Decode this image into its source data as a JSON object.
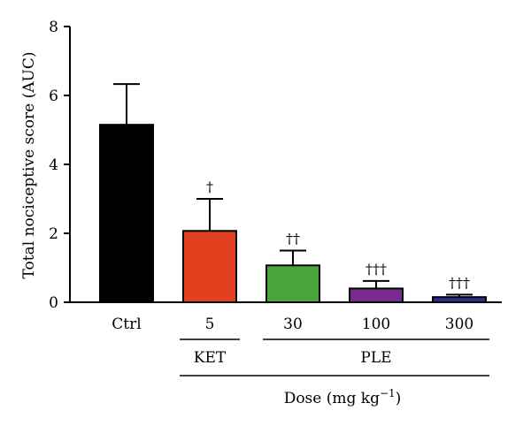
{
  "chart_data": {
    "type": "bar",
    "categories": [
      "Ctrl",
      "5",
      "30",
      "100",
      "300"
    ],
    "values": [
      5.15,
      2.07,
      1.07,
      0.4,
      0.15
    ],
    "errors": [
      1.18,
      0.93,
      0.43,
      0.22,
      0.07
    ],
    "significance": [
      "",
      "†",
      "††",
      "†††",
      "†††"
    ],
    "colors": [
      "#000000",
      "#e0401e",
      "#4aa43c",
      "#7a2b8e",
      "#2b2c8c"
    ],
    "groups": [
      {
        "label": "KET",
        "from": 1,
        "to": 1
      },
      {
        "label": "PLE",
        "from": 2,
        "to": 4
      }
    ],
    "ylabel": "Total nociceptive score (AUC)",
    "xlabel": {
      "text": "Dose (mg kg",
      "sup": "−1",
      "close": ")"
    },
    "ylim": [
      0,
      8
    ],
    "yticks": [
      "0",
      "2",
      "4",
      "6",
      "8"
    ],
    "grid": false,
    "legend": "none"
  }
}
